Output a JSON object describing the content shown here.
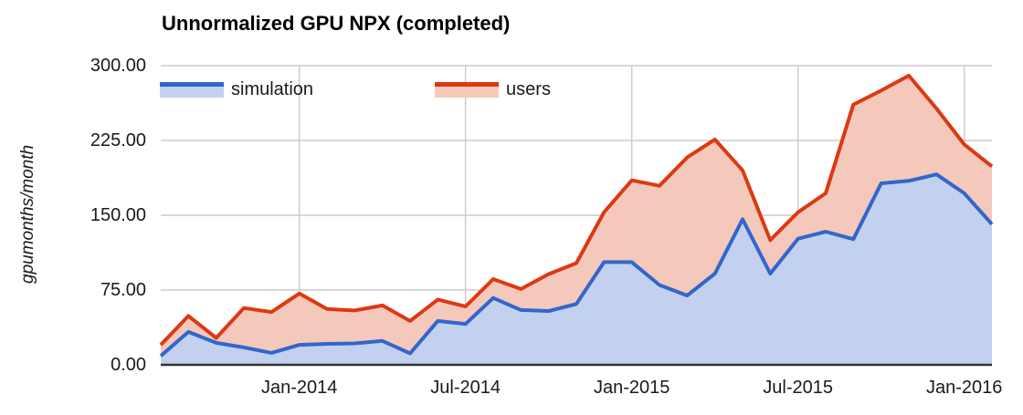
{
  "page": {
    "background": "#ffffff"
  },
  "chart_data": {
    "type": "area",
    "stacked": true,
    "stacking_note": "red 'users' band is drawn stacked on top of 'simulation'; users.values below are the rendered top edge of the red band (simulation + users)",
    "title": "Unnormalized GPU NPX (completed)",
    "ylabel": "gpumonths/month",
    "xlabel": "",
    "ylim": [
      0,
      300
    ],
    "grid": true,
    "legend_position": "top-left-inside",
    "categories": [
      "Aug-2013",
      "Sep-2013",
      "Oct-2013",
      "Nov-2013",
      "Dec-2013",
      "Jan-2014",
      "Feb-2014",
      "Mar-2014",
      "Apr-2014",
      "May-2014",
      "Jun-2014",
      "Jul-2014",
      "Aug-2014",
      "Sep-2014",
      "Oct-2014",
      "Nov-2014",
      "Dec-2014",
      "Jan-2015",
      "Feb-2015",
      "Mar-2015",
      "Apr-2015",
      "May-2015",
      "Jun-2015",
      "Jul-2015",
      "Aug-2015",
      "Sep-2015",
      "Oct-2015",
      "Nov-2015",
      "Dec-2015",
      "Jan-2016",
      "Feb-2016"
    ],
    "series": [
      {
        "name": "simulation",
        "line_color": "#3366CC",
        "fill_color": "#C2D1F0",
        "values": [
          9,
          33,
          22,
          17.5,
          12,
          20,
          21,
          21.5,
          24,
          11.5,
          44,
          41,
          67,
          55,
          54,
          61,
          103,
          103,
          80,
          69.5,
          91.5,
          146,
          91.5,
          126.5,
          133.5,
          126,
          182,
          184.5,
          191,
          172,
          141
        ]
      },
      {
        "name": "users",
        "line_color": "#DC3912",
        "fill_color": "#F5C8BC",
        "values": [
          20,
          49,
          27,
          57,
          53,
          71.5,
          56,
          54.5,
          59.5,
          44,
          65.5,
          58.5,
          86,
          76,
          91,
          102,
          153,
          185,
          179.5,
          208,
          226,
          195,
          125,
          153,
          172,
          261,
          275,
          290,
          257,
          221,
          199
        ]
      }
    ],
    "y_ticks": [
      {
        "label": "0.00",
        "value": 0
      },
      {
        "label": "75.00",
        "value": 75
      },
      {
        "label": "150.00",
        "value": 150
      },
      {
        "label": "225.00",
        "value": 225
      },
      {
        "label": "300.00",
        "value": 300
      }
    ],
    "x_ticks": [
      {
        "label": "Jan-2014",
        "index": 5
      },
      {
        "label": "Jul-2014",
        "index": 11
      },
      {
        "label": "Jan-2015",
        "index": 17
      },
      {
        "label": "Jul-2015",
        "index": 23
      },
      {
        "label": "Jan-2016",
        "index": 29
      }
    ],
    "axis": {
      "tick_color": "#1a1a1a",
      "grid_color": "#cccccc",
      "baseline_color": "#333333"
    }
  }
}
